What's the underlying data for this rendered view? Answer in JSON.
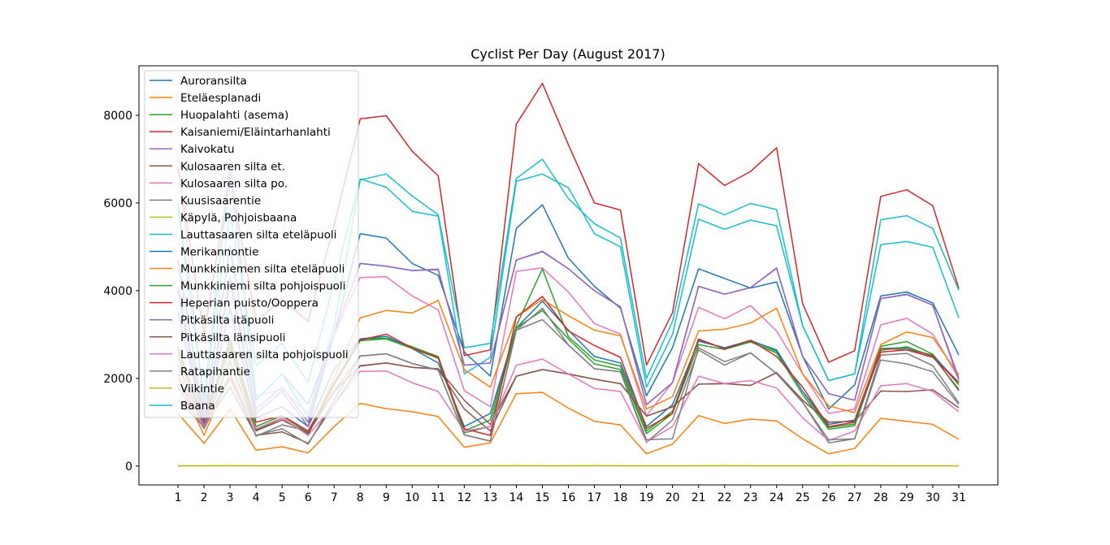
{
  "chart_data": {
    "type": "line",
    "title": "Cyclist Per Day (August 2017)",
    "xlabel": "",
    "ylabel": "",
    "x": [
      1,
      2,
      3,
      4,
      5,
      6,
      7,
      8,
      9,
      10,
      11,
      12,
      13,
      14,
      15,
      16,
      17,
      18,
      19,
      20,
      21,
      22,
      23,
      24,
      25,
      26,
      27,
      28,
      29,
      30,
      31
    ],
    "x_ticks": [
      "1",
      "2",
      "3",
      "4",
      "5",
      "6",
      "7",
      "8",
      "9",
      "10",
      "11",
      "12",
      "13",
      "14",
      "15",
      "16",
      "17",
      "18",
      "19",
      "20",
      "21",
      "22",
      "23",
      "24",
      "25",
      "26",
      "27",
      "28",
      "29",
      "30",
      "31"
    ],
    "y_ticks": [
      "0",
      "2000",
      "4000",
      "6000",
      "8000"
    ],
    "xlim": [
      -0.5,
      32.5
    ],
    "ylim": [
      -430,
      9130
    ],
    "grid": false,
    "legend_position": "top-left",
    "series": [
      {
        "name": "Auroransilta",
        "color": "#1f77b4",
        "values": [
          4700,
          1100,
          5000,
          1500,
          2100,
          1400,
          3000,
          5300,
          5200,
          4620,
          4350,
          2600,
          2050,
          5420,
          5960,
          4740,
          4100,
          3600,
          1600,
          2700,
          4500,
          4280,
          4060,
          4200,
          2500,
          1300,
          1850,
          3880,
          3970,
          3720,
          2530
        ]
      },
      {
        "name": "Eteläesplanadi",
        "color": "#ff7f0e",
        "values": [
          1200,
          520,
          1300,
          360,
          440,
          300,
          900,
          1430,
          1310,
          1240,
          1130,
          430,
          530,
          1650,
          1680,
          1320,
          1020,
          940,
          280,
          500,
          1150,
          970,
          1070,
          1030,
          620,
          280,
          400,
          1090,
          1020,
          950,
          610
        ]
      },
      {
        "name": "Huopalahti (asema)",
        "color": "#2ca02c",
        "values": [
          2600,
          1100,
          2800,
          900,
          1150,
          760,
          1900,
          2900,
          2920,
          2720,
          2500,
          800,
          1050,
          3200,
          4500,
          2950,
          2420,
          2280,
          800,
          1250,
          2880,
          2680,
          2870,
          2620,
          1700,
          880,
          960,
          2730,
          2840,
          2550,
          1850
        ]
      },
      {
        "name": "Kaisaniemi/Eläintarhanlahti",
        "color": "#d62728",
        "values": [
          6800,
          3000,
          6600,
          3300,
          3800,
          3300,
          5500,
          7920,
          7990,
          7180,
          6620,
          2520,
          2650,
          7800,
          8730,
          7330,
          6000,
          5840,
          2300,
          3500,
          6900,
          6400,
          6720,
          7260,
          3700,
          2370,
          2630,
          6150,
          6300,
          5940,
          4050
        ]
      },
      {
        "name": "Kaivokatu",
        "color": "#9467bd",
        "values": [
          4100,
          1000,
          4300,
          1300,
          1800,
          1000,
          3000,
          4620,
          4560,
          4460,
          4490,
          2300,
          2350,
          4700,
          4900,
          4500,
          4000,
          3630,
          1400,
          1900,
          4100,
          3920,
          4070,
          4520,
          2500,
          1650,
          1500,
          3820,
          3920,
          3670,
          2000
        ]
      },
      {
        "name": "Kulosaaren silta et.",
        "color": "#8c564b",
        "values": [
          1500,
          900,
          1800,
          700,
          780,
          520,
          1400,
          2290,
          2350,
          2250,
          2210,
          1300,
          800,
          2050,
          2200,
          2100,
          1980,
          1880,
          1140,
          1350,
          1870,
          1880,
          1840,
          2130,
          1500,
          1000,
          1020,
          1710,
          1700,
          1740,
          1330
        ]
      },
      {
        "name": "Kulosaaren silta po.",
        "color": "#e377c2",
        "values": [
          7100,
          1200,
          7000,
          1600,
          1750,
          1200,
          3000,
          4300,
          4320,
          3880,
          3560,
          1720,
          1350,
          4440,
          4520,
          3970,
          3250,
          3010,
          1150,
          1900,
          3620,
          3360,
          3660,
          3080,
          2100,
          1200,
          1300,
          3220,
          3370,
          3010,
          2000
        ]
      },
      {
        "name": "Kuusisaarentie",
        "color": "#7f7f7f",
        "values": [
          2000,
          900,
          2100,
          680,
          940,
          800,
          1700,
          2510,
          2560,
          2340,
          2190,
          710,
          570,
          3100,
          3340,
          2760,
          2220,
          2150,
          540,
          1050,
          2650,
          2300,
          2580,
          2110,
          1450,
          530,
          620,
          2530,
          2570,
          2290,
          1440
        ]
      },
      {
        "name": "Käpylä, Pohjoisbaana",
        "color": "#bcbd22",
        "values": [
          5,
          5,
          10,
          5,
          5,
          5,
          5,
          5,
          5,
          5,
          5,
          5,
          5,
          10,
          5,
          5,
          10,
          5,
          5,
          5,
          5,
          10,
          5,
          5,
          5,
          5,
          10,
          5,
          5,
          5,
          5
        ]
      },
      {
        "name": "Lauttasaaren silta eteläpuoli",
        "color": "#17becf",
        "values": [
          5900,
          1500,
          5800,
          2300,
          2800,
          1900,
          4200,
          6550,
          6360,
          5810,
          5700,
          2100,
          2480,
          6500,
          6660,
          6350,
          5300,
          5000,
          1800,
          3000,
          5630,
          5400,
          5610,
          5480,
          3200,
          1950,
          2100,
          5620,
          5710,
          5420,
          4010
        ]
      },
      {
        "name": "Merikannontie",
        "color": "#1f77b4",
        "values": [
          3500,
          1000,
          3600,
          1100,
          1350,
          900,
          2200,
          2900,
          2960,
          2680,
          2350,
          900,
          1200,
          3150,
          3760,
          3100,
          2500,
          2350,
          900,
          1400,
          2850,
          2700,
          2860,
          2650,
          1700,
          950,
          1050,
          2680,
          2700,
          2520,
          1900
        ]
      },
      {
        "name": "Munkkiniemen silta eteläpuoli",
        "color": "#ff7f0e",
        "values": [
          2000,
          700,
          2100,
          800,
          1100,
          700,
          2000,
          3380,
          3550,
          3490,
          3780,
          2200,
          1800,
          3400,
          3800,
          3430,
          3100,
          2970,
          1300,
          1580,
          3080,
          3120,
          3260,
          3600,
          2100,
          1370,
          1220,
          2770,
          3060,
          2930,
          2080
        ]
      },
      {
        "name": "Munkkiniemi silta pohjoispuoli",
        "color": "#2ca02c",
        "values": [
          2500,
          950,
          2700,
          820,
          1100,
          720,
          1850,
          2860,
          2900,
          2680,
          2460,
          760,
          900,
          3150,
          3550,
          2900,
          2330,
          2200,
          740,
          1200,
          2770,
          2660,
          2830,
          2580,
          1630,
          840,
          920,
          2640,
          2720,
          2500,
          1750
        ]
      },
      {
        "name": "Heperian puisto/Ooppera",
        "color": "#d62728",
        "values": [
          2700,
          1000,
          2900,
          1000,
          1150,
          800,
          1850,
          2870,
          3010,
          2690,
          2470,
          850,
          700,
          3400,
          3870,
          3080,
          2750,
          2480,
          860,
          1200,
          2900,
          2670,
          2870,
          2500,
          1800,
          900,
          1000,
          2600,
          2650,
          2480,
          1900
        ]
      },
      {
        "name": "Pitkäsilta itäpuoli",
        "color": "#9467bd",
        "values": [
          4000,
          900,
          4200,
          1200,
          1700,
          900,
          3000,
          4620,
          4560,
          4460,
          4480,
          2300,
          2350,
          4700,
          4890,
          4500,
          4000,
          3630,
          1400,
          1900,
          4100,
          3920,
          4070,
          4510,
          2500,
          1650,
          1500,
          3820,
          3910,
          3670,
          1950
        ]
      },
      {
        "name": "Pitkäsilta länsipuoli",
        "color": "#8c564b",
        "values": [
          2300,
          900,
          2400,
          800,
          1050,
          750,
          1700,
          2280,
          2350,
          2250,
          2220,
          1500,
          950,
          2050,
          2200,
          2100,
          1980,
          1880,
          1140,
          1350,
          1870,
          1880,
          1840,
          2130,
          1500,
          1000,
          1020,
          2680,
          2660,
          2530,
          1720
        ]
      },
      {
        "name": "Lauttasaaren silta pohjoispuoli",
        "color": "#e377c2",
        "values": [
          2100,
          900,
          2000,
          850,
          1100,
          700,
          1400,
          2160,
          2170,
          1900,
          1700,
          800,
          900,
          2300,
          2440,
          2100,
          1770,
          1700,
          550,
          900,
          2050,
          1880,
          1950,
          1780,
          1100,
          580,
          800,
          1830,
          1880,
          1700,
          1240
        ]
      },
      {
        "name": "Ratapihantie",
        "color": "#7f7f7f",
        "values": [
          1800,
          850,
          2000,
          700,
          850,
          500,
          1500,
          2510,
          2560,
          2340,
          2190,
          710,
          570,
          3100,
          3600,
          2760,
          2220,
          2150,
          600,
          620,
          2700,
          2380,
          2580,
          2110,
          1450,
          600,
          620,
          2420,
          2330,
          2150,
          1400
        ]
      },
      {
        "name": "Viikintie",
        "color": "#bcbd22",
        "values": [
          5,
          5,
          5,
          5,
          5,
          5,
          5,
          5,
          5,
          5,
          5,
          5,
          5,
          5,
          5,
          5,
          5,
          5,
          5,
          5,
          5,
          5,
          5,
          5,
          5,
          5,
          5,
          5,
          5,
          5,
          5
        ]
      },
      {
        "name": "Baana",
        "color": "#17becf",
        "values": [
          6000,
          1600,
          6700,
          1500,
          2100,
          1100,
          3200,
          6530,
          6660,
          6160,
          5730,
          2700,
          2800,
          6560,
          7000,
          6100,
          5530,
          5200,
          2000,
          3300,
          5980,
          5730,
          5990,
          5850,
          3200,
          1950,
          2100,
          5050,
          5120,
          4990,
          3380
        ]
      }
    ]
  }
}
